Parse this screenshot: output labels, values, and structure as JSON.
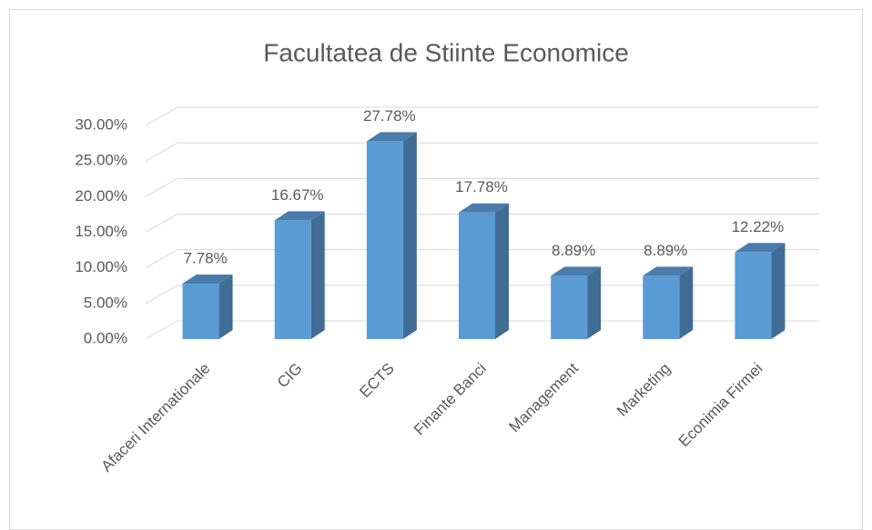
{
  "chart_data": {
    "type": "bar3d",
    "title": "Facultatea de Stiinte Economice",
    "categories": [
      "Afaceri Internationale",
      "CIG",
      "ECTS",
      "Finante Banci",
      "Management",
      "Marketing",
      "Econimia Firmei"
    ],
    "values": [
      7.78,
      16.67,
      27.78,
      17.78,
      8.89,
      8.89,
      12.22
    ],
    "value_labels": [
      "7.78%",
      "16.67%",
      "27.78%",
      "17.78%",
      "8.89%",
      "8.89%",
      "12.22%"
    ],
    "color": "#5b9bd5",
    "ylim": [
      0,
      30
    ],
    "yticks": [
      {
        "value": 0,
        "label": "0.00%"
      },
      {
        "value": 5,
        "label": "5.00%"
      },
      {
        "value": 10,
        "label": "10.00%"
      },
      {
        "value": 15,
        "label": "15.00%"
      },
      {
        "value": 20,
        "label": "20.00%"
      },
      {
        "value": 25,
        "label": "25.00%"
      },
      {
        "value": 30,
        "label": "30.00%"
      }
    ],
    "grid": true
  }
}
